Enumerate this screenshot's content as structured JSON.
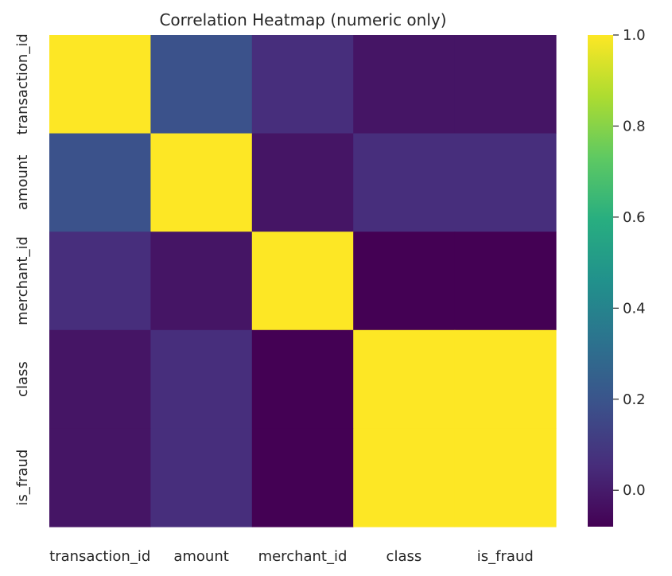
{
  "chart_data": {
    "type": "heatmap",
    "title": "Correlation Heatmap (numeric only)",
    "xlabel": "",
    "ylabel": "",
    "x_categories": [
      "transaction_id",
      "amount",
      "merchant_id",
      "class",
      "is_fraud"
    ],
    "y_categories": [
      "transaction_id",
      "amount",
      "merchant_id",
      "class",
      "is_fraud"
    ],
    "values": [
      [
        1.0,
        0.19,
        0.06,
        -0.02,
        -0.02
      ],
      [
        0.19,
        1.0,
        -0.02,
        0.06,
        0.06
      ],
      [
        0.06,
        -0.02,
        1.0,
        -0.08,
        -0.08
      ],
      [
        -0.02,
        0.06,
        -0.08,
        1.0,
        1.0
      ],
      [
        -0.02,
        0.06,
        -0.08,
        1.0,
        1.0
      ]
    ],
    "colormap": "viridis",
    "vmin": -0.08,
    "vmax": 1.0,
    "colorbar_ticks": [
      "0.0",
      "0.2",
      "0.4",
      "0.6",
      "0.8",
      "1.0"
    ],
    "colorbar_tick_values": [
      0.0,
      0.2,
      0.4,
      0.6,
      0.8,
      1.0
    ],
    "grid": false,
    "legend": "colorbar-right"
  }
}
